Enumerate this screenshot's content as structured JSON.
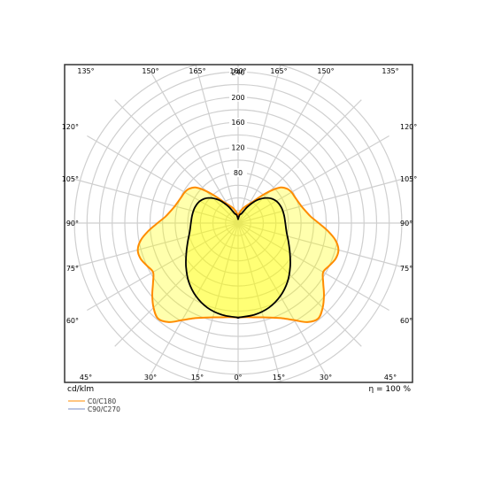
{
  "chart_data": {
    "type": "polar",
    "unit_label": "cd/klm",
    "efficiency_label": "η = 100 %",
    "radial_ticks": [
      {
        "value": 80,
        "label": "80"
      },
      {
        "value": 120,
        "label": "120"
      },
      {
        "value": 160,
        "label": "160"
      },
      {
        "value": 200,
        "label": "200"
      },
      {
        "value": 240,
        "label": "240"
      }
    ],
    "r_max": 277,
    "angle_labels_top": [
      {
        "angle": 135,
        "label": "135°"
      },
      {
        "angle": 150,
        "label": "150°"
      },
      {
        "angle": 165,
        "label": "165°"
      },
      {
        "angle": 180,
        "label": "180°"
      },
      {
        "angle": 165,
        "label": "165°"
      },
      {
        "angle": 150,
        "label": "150°"
      },
      {
        "angle": 135,
        "label": "135°"
      }
    ],
    "angle_labels_bottom": [
      {
        "angle": 45,
        "label": "45°"
      },
      {
        "angle": 30,
        "label": "30°"
      },
      {
        "angle": 15,
        "label": "15°"
      },
      {
        "angle": 0,
        "label": "0°"
      },
      {
        "angle": 15,
        "label": "15°"
      },
      {
        "angle": 30,
        "label": "30°"
      },
      {
        "angle": 45,
        "label": "45°"
      }
    ],
    "angle_labels_left": [
      {
        "angle": 120,
        "label": "120°"
      },
      {
        "angle": 105,
        "label": "105°"
      },
      {
        "angle": 90,
        "label": "90°"
      },
      {
        "angle": 75,
        "label": "75°"
      },
      {
        "angle": 60,
        "label": "60°"
      }
    ],
    "angle_labels_right": [
      {
        "angle": 120,
        "label": "120°"
      },
      {
        "angle": 105,
        "label": "105°"
      },
      {
        "angle": 90,
        "label": "90°"
      },
      {
        "angle": 75,
        "label": "75°"
      },
      {
        "angle": 60,
        "label": "60°"
      }
    ],
    "series": [
      {
        "name": "C0/C180",
        "color": "#ff8c00",
        "angles": [
          0,
          5,
          10,
          15,
          20,
          25,
          30,
          35,
          40,
          45,
          50,
          55,
          60,
          65,
          70,
          75,
          80,
          85,
          90,
          95,
          100,
          105,
          110,
          115,
          120,
          125,
          130,
          135,
          140,
          145,
          150,
          155,
          160,
          165,
          170,
          175,
          180
        ],
        "values": [
          150,
          150,
          152,
          155,
          160,
          167,
          178,
          192,
          198,
          190,
          178,
          165,
          156,
          160,
          165,
          165,
          157,
          143,
          128,
          116,
          109,
          104,
          101,
          99,
          98,
          95,
          88,
          72,
          55,
          42,
          35,
          30,
          26,
          22,
          18,
          14,
          10
        ]
      },
      {
        "name": "C90/C270",
        "color": "#000000",
        "angles": [
          0,
          10,
          20,
          30,
          40,
          50,
          60,
          70,
          80,
          90,
          100,
          110,
          120,
          130,
          140,
          150,
          160,
          165,
          170,
          175,
          180
        ],
        "values": [
          150,
          148,
          143,
          134,
          122,
          108,
          95,
          85,
          78,
          75,
          74,
          73,
          70,
          62,
          48,
          30,
          16,
          15,
          13,
          9,
          6
        ]
      }
    ]
  }
}
